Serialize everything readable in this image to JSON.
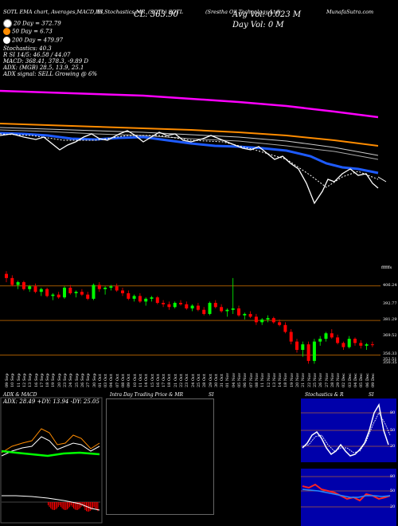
{
  "header": {
    "top_left": "SOTL EMA chart, Averages,MACD,RS",
    "chart_title": "SI,Stochastics,MR",
    "symbol": "(SOTL) SOTL",
    "company": "(Srestha Oil Technology Ltd)",
    "source": "MunafaSutra.com",
    "close": "CL: 363.90",
    "avg_vol": "Avg Vol: 0.023 M",
    "day_vol": "Day Vol: 0  M"
  },
  "legend": [
    {
      "text": "20 Day = 372.79",
      "color": "#ffffff"
    },
    {
      "text": "50 Day = 6.73",
      "color": "#ff8c00"
    },
    {
      "text": "200 Day = 479.97",
      "color": "#ffffff"
    }
  ],
  "info_lines": [
    "Stochastics: 40.3",
    "R          SI 14/5: 46.58 / 44.07",
    "MACD: 368.41, 378.3,  -9.89 D",
    "ADX:                    (MGB) 28.5,  13.9,  25.1",
    "ADX  signal: SELL Growing @ 6%"
  ],
  "price_labels": [
    "406.24",
    "392.77",
    "381.29",
    "369.52",
    "356.33",
    "352.51",
    "350.35"
  ],
  "top_right_label": "ffffffs",
  "dates": [
    "09 Sep",
    "10 Sep",
    "11 Sep",
    "12 Sep",
    "13 Sep",
    "16 Sep",
    "17 Sep",
    "18 Sep",
    "19 Sep",
    "20 Sep",
    "23 Sep",
    "24 Sep",
    "25 Sep",
    "26 Sep",
    "27 Sep",
    "30 Sep",
    "01 Oct",
    "03 Oct",
    "04 Oct",
    "07 Oct",
    "08 Oct",
    "09 Oct",
    "10 Oct",
    "11 Oct",
    "14 Oct",
    "15 Oct",
    "16 Oct",
    "17 Oct",
    "18 Oct",
    "21 Oct",
    "22 Oct",
    "23 Oct",
    "24 Oct",
    "25 Oct",
    "28 Oct",
    "29 Oct",
    "30 Oct",
    "31 Oct",
    "01 Nov",
    "04 Nov",
    "05 Nov",
    "06 Nov",
    "07 Nov",
    "08 Nov",
    "11 Nov",
    "12 Nov",
    "13 Nov",
    "14 Nov",
    "18 Nov",
    "19 Nov",
    "20 Nov",
    "21 Nov",
    "22 Nov",
    "25 Nov",
    "26 Nov",
    "27 Nov",
    "28 Nov",
    "29 Nov",
    "02 Dec",
    "03 Dec",
    "04 Dec",
    "05 Dec",
    "06 Dec",
    "09 Dec"
  ],
  "panels": {
    "adx_title": "ADX  & MACD",
    "adx_values": "ADX: 28.49  +DY: 13.94  -DY: 25.05",
    "intraday_title": "Intra Day Trading Price  & MR",
    "intraday_si": "SI",
    "stoch_title": "Stochastics & R",
    "stoch_si": "SI",
    "stoch_levels": [
      "80",
      "50",
      "20"
    ],
    "rsi_levels": [
      "80",
      "50",
      "20"
    ]
  },
  "colors": {
    "ema200": "#ff00ff",
    "ema50": "#ff8c00",
    "ema20": "#1e5bff",
    "bull": "#00ff00",
    "bear": "#ff0000",
    "panel_bg": "#0000aa"
  },
  "chart_data": {
    "type": "candlestick",
    "candles": [
      [
        415,
        417,
        409,
        412
      ],
      [
        412,
        414,
        406,
        407
      ],
      [
        407,
        410,
        404,
        409
      ],
      [
        409,
        410,
        403,
        404
      ],
      [
        404,
        407,
        402,
        406
      ],
      [
        406,
        408,
        401,
        402
      ],
      [
        402,
        405,
        399,
        404
      ],
      [
        404,
        405,
        398,
        399
      ],
      [
        399,
        401,
        396,
        400
      ],
      [
        400,
        402,
        397,
        398
      ],
      [
        398,
        406,
        397,
        405
      ],
      [
        405,
        407,
        400,
        401
      ],
      [
        401,
        403,
        398,
        402
      ],
      [
        402,
        404,
        399,
        400
      ],
      [
        400,
        402,
        396,
        397
      ],
      [
        397,
        408,
        396,
        407
      ],
      [
        407,
        409,
        402,
        404
      ],
      [
        404,
        406,
        400,
        405
      ],
      [
        405,
        407,
        403,
        406
      ],
      [
        406,
        408,
        402,
        403
      ],
      [
        403,
        405,
        399,
        401
      ],
      [
        401,
        403,
        396,
        397
      ],
      [
        397,
        400,
        395,
        399
      ],
      [
        399,
        401,
        394,
        395
      ],
      [
        395,
        398,
        392,
        397
      ],
      [
        397,
        399,
        395,
        398
      ],
      [
        398,
        399,
        393,
        394
      ],
      [
        394,
        396,
        391,
        393
      ],
      [
        393,
        395,
        389,
        391
      ],
      [
        391,
        395,
        390,
        394
      ],
      [
        394,
        396,
        392,
        393
      ],
      [
        393,
        395,
        389,
        390
      ],
      [
        390,
        393,
        388,
        392
      ],
      [
        392,
        394,
        388,
        389
      ],
      [
        389,
        391,
        385,
        386
      ],
      [
        386,
        395,
        385,
        394
      ],
      [
        394,
        396,
        390,
        391
      ],
      [
        391,
        393,
        387,
        388
      ],
      [
        388,
        390,
        384,
        389
      ],
      [
        389,
        412,
        386,
        390
      ],
      [
        390,
        392,
        384,
        385
      ],
      [
        385,
        387,
        382,
        386
      ],
      [
        386,
        388,
        383,
        384
      ],
      [
        384,
        386,
        378,
        380
      ],
      [
        380,
        383,
        378,
        382
      ],
      [
        382,
        385,
        380,
        383
      ],
      [
        383,
        384,
        379,
        380
      ],
      [
        380,
        382,
        377,
        378
      ],
      [
        378,
        380,
        372,
        373
      ],
      [
        373,
        375,
        364,
        366
      ],
      [
        366,
        368,
        358,
        360
      ],
      [
        360,
        366,
        355,
        364
      ],
      [
        364,
        366,
        350,
        352
      ],
      [
        352,
        368,
        350,
        366
      ],
      [
        366,
        370,
        363,
        368
      ],
      [
        368,
        373,
        366,
        372
      ],
      [
        372,
        375,
        368,
        369
      ],
      [
        369,
        371,
        364,
        365
      ],
      [
        365,
        366,
        360,
        362
      ],
      [
        362,
        370,
        361,
        368
      ],
      [
        368,
        369,
        363,
        365
      ],
      [
        365,
        367,
        361,
        363
      ],
      [
        363,
        365,
        360,
        364
      ],
      [
        364,
        366,
        362,
        363.9
      ]
    ],
    "ylim": [
      345,
      420
    ],
    "stoch_ylim": [
      0,
      100
    ],
    "rsi_ylim": [
      0,
      100
    ]
  }
}
